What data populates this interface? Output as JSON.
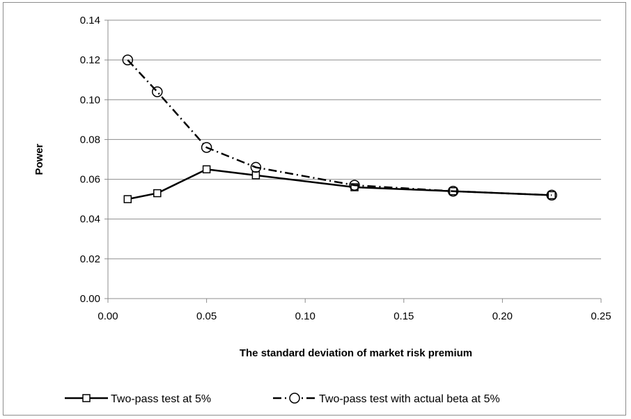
{
  "chart_data": {
    "type": "line",
    "xlabel": "The standard deviation of market risk premium",
    "ylabel": "Power",
    "xlim": [
      0,
      0.25
    ],
    "ylim": [
      0,
      0.14
    ],
    "x_ticks": [
      "0.00",
      "0.05",
      "0.10",
      "0.15",
      "0.20",
      "0.25"
    ],
    "y_ticks": [
      "0.00",
      "0.02",
      "0.04",
      "0.06",
      "0.08",
      "0.10",
      "0.12",
      "0.14"
    ],
    "grid": "horizontal",
    "legend_position": "bottom",
    "series": [
      {
        "name": "Two-pass test at 5%",
        "marker": "square",
        "line_style": "solid",
        "x": [
          0.01,
          0.025,
          0.05,
          0.075,
          0.125,
          0.175,
          0.225
        ],
        "y": [
          0.05,
          0.053,
          0.065,
          0.062,
          0.056,
          0.054,
          0.052
        ]
      },
      {
        "name": "Two-pass test with actual beta at 5%",
        "marker": "circle",
        "line_style": "dash-dot",
        "x": [
          0.01,
          0.025,
          0.05,
          0.075,
          0.125,
          0.175,
          0.225
        ],
        "y": [
          0.12,
          0.104,
          0.076,
          0.066,
          0.057,
          0.054,
          0.052
        ]
      }
    ]
  }
}
